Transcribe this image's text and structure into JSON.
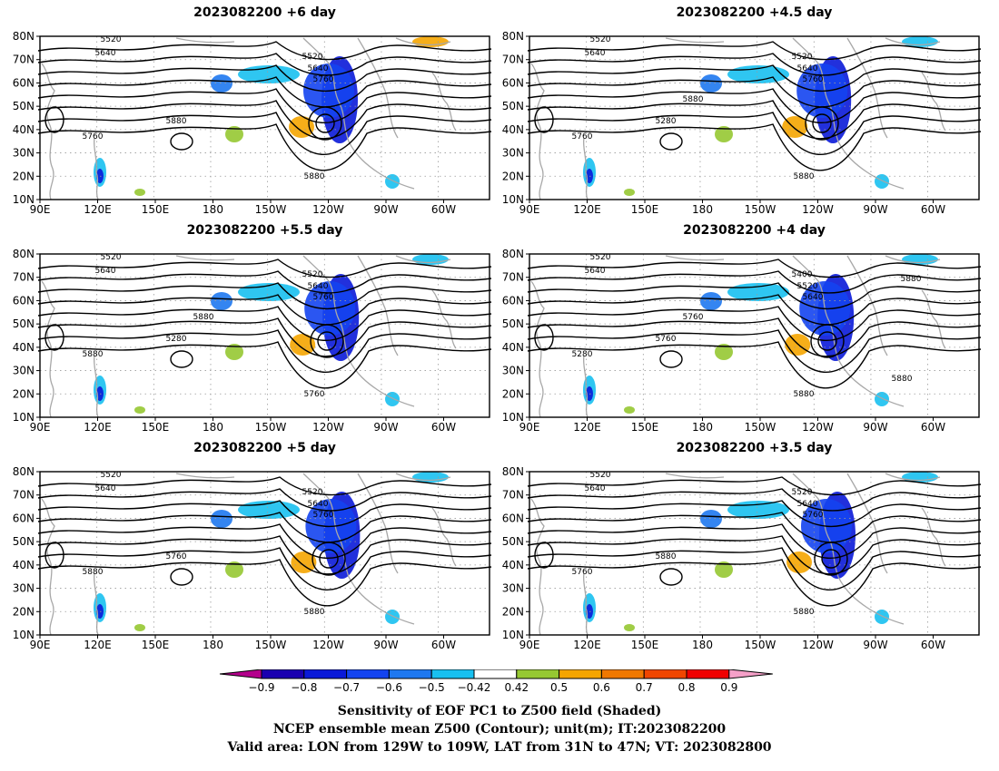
{
  "panels": [
    {
      "title": "2023082200 +6 day",
      "contour_labels": [
        "5520",
        "5640",
        "5520",
        "5640",
        "5760",
        "5880",
        "5760",
        "5880"
      ]
    },
    {
      "title": "2023082200 +4.5 day",
      "contour_labels": [
        "5520",
        "5640",
        "5520",
        "5640",
        "5760",
        "5280",
        "5760",
        "5880",
        "5880"
      ]
    },
    {
      "title": "2023082200 +5.5 day",
      "contour_labels": [
        "5520",
        "5640",
        "5520",
        "5640",
        "5760",
        "5280",
        "5880",
        "5760",
        "5880"
      ]
    },
    {
      "title": "2023082200 +4 day",
      "contour_labels": [
        "5520",
        "5640",
        "5400",
        "5520",
        "5640",
        "5760",
        "5280",
        "5880",
        "5760",
        "5880",
        "5880"
      ]
    },
    {
      "title": "2023082200 +5 day",
      "contour_labels": [
        "5520",
        "5640",
        "5520",
        "5640",
        "5760",
        "5760",
        "5880",
        "5880"
      ]
    },
    {
      "title": "2023082200 +3.5 day",
      "contour_labels": [
        "5520",
        "5640",
        "5520",
        "5640",
        "5760",
        "5880",
        "5760",
        "5880"
      ]
    }
  ],
  "axes": {
    "lat_labels": [
      "80N",
      "70N",
      "60N",
      "50N",
      "40N",
      "30N",
      "20N",
      "10N"
    ],
    "lon_labels": [
      "90E",
      "120E",
      "150E",
      "180",
      "150W",
      "120W",
      "90W",
      "60W"
    ]
  },
  "colorbar": {
    "tick_labels": [
      "−0.9",
      "−0.8",
      "−0.7",
      "−0.6",
      "−0.5",
      "−0.42",
      "0.42",
      "0.5",
      "0.6",
      "0.7",
      "0.8",
      "0.9"
    ],
    "colors": [
      "#1a00b0",
      "#0a1ad8",
      "#1444f0",
      "#1e78f0",
      "#18c0f0",
      "#ffffff",
      "#96c832",
      "#f5a500",
      "#f07800",
      "#f04600",
      "#f00000"
    ],
    "low_color": "#b4008c",
    "high_color": "#f5a0c8"
  },
  "caption": {
    "line1": "Sensitivity of EOF PC1 to Z500 field (Shaded)",
    "line2": "NCEP ensemble mean Z500 (Contour); unit(m); IT:2023082200",
    "line3": "Valid area: LON from 129W to 109W, LAT from 31N to 47N; VT: 2023082800"
  }
}
